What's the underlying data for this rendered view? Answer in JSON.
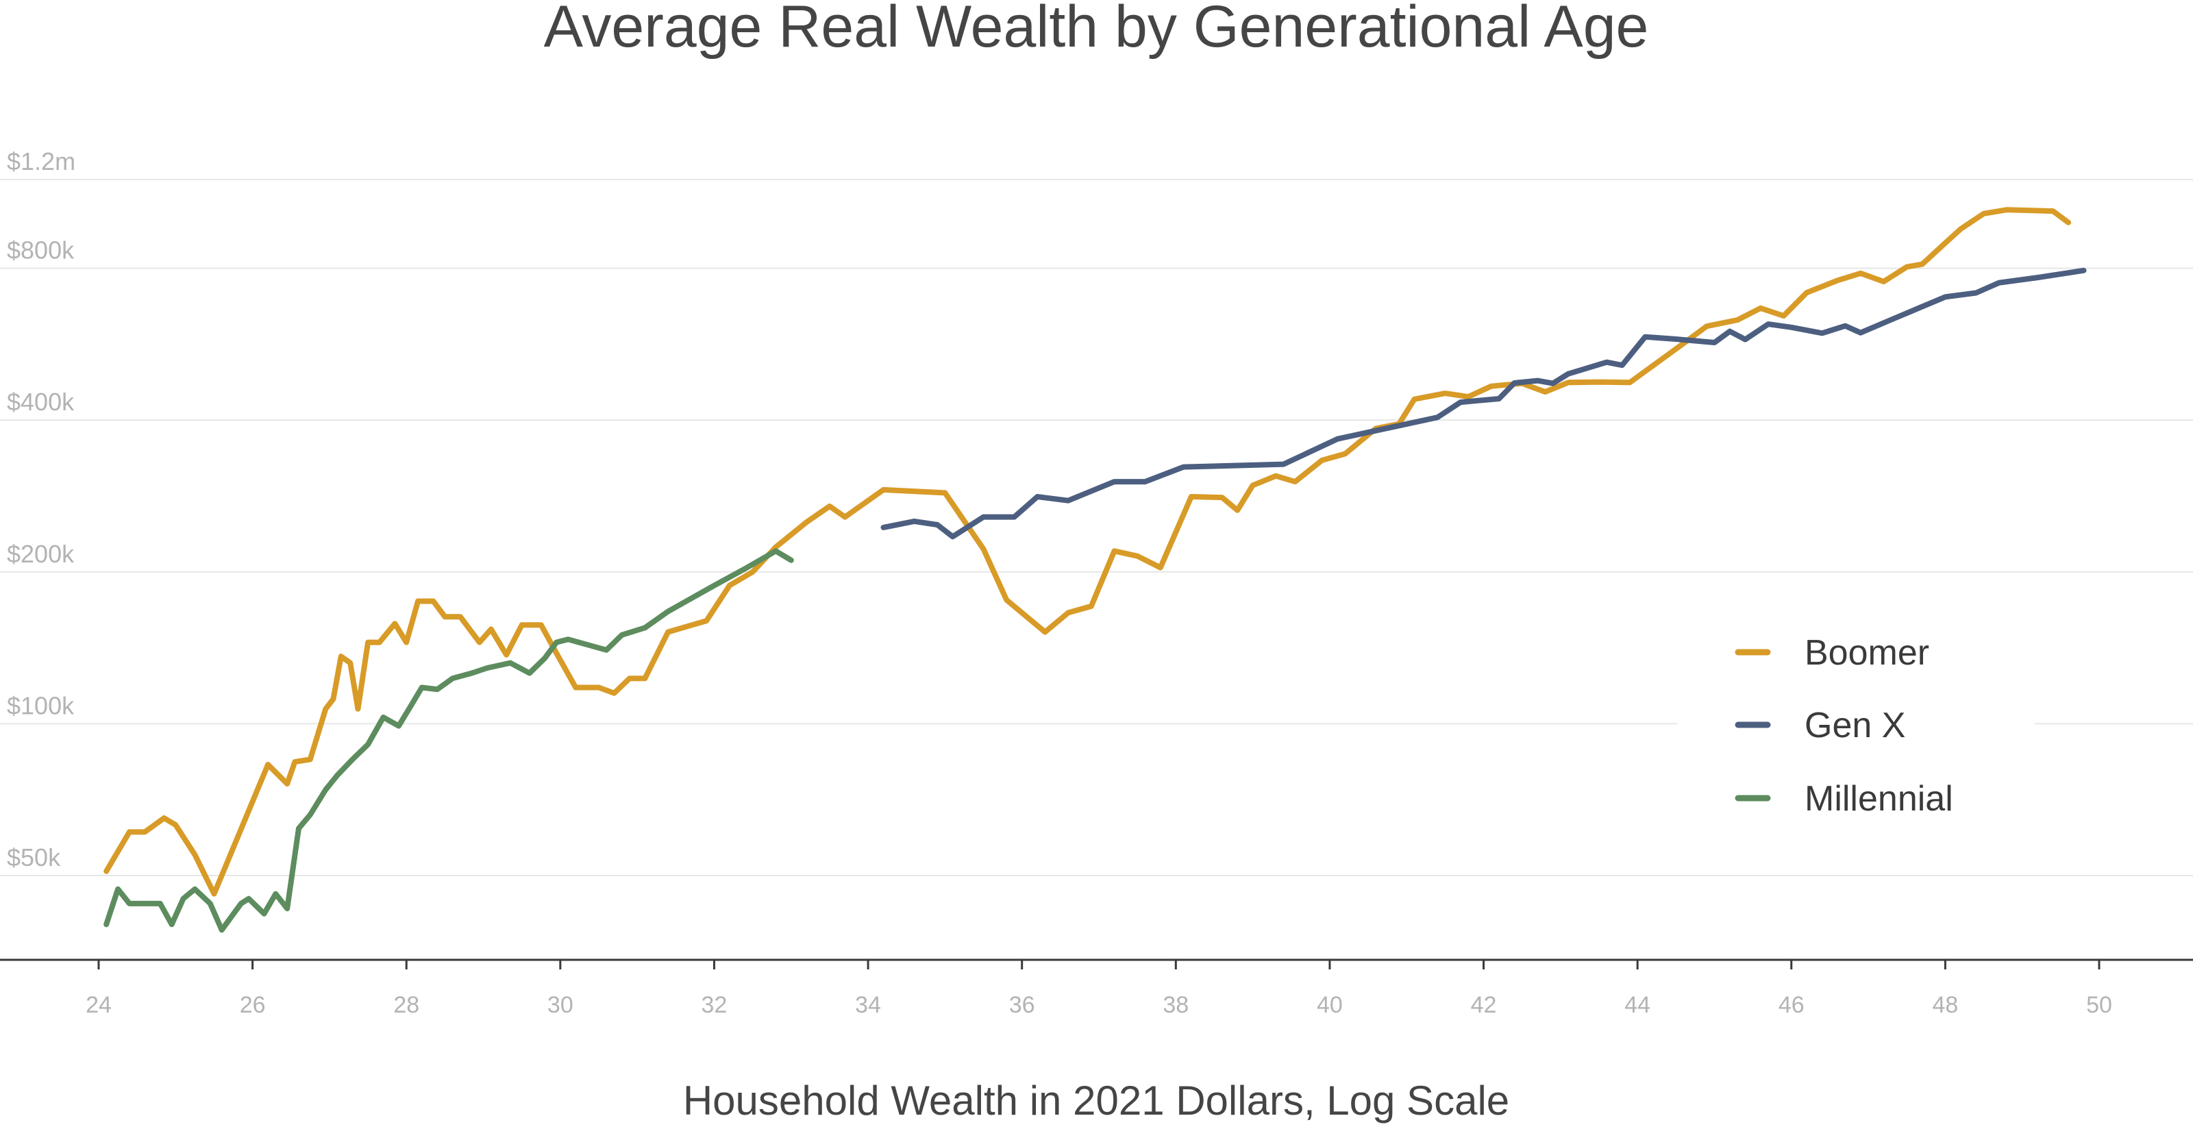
{
  "chart_data": {
    "type": "line",
    "title": "Average Real Wealth by Generational Age",
    "caption": "Household Wealth in 2021 Dollars, Log Scale",
    "xlabel": "",
    "ylabel": "",
    "xlim": [
      23.9,
      51.3
    ],
    "ylim": [
      30000,
      1400000
    ],
    "yscale": "log",
    "grid": true,
    "x_ticks": [
      24,
      26,
      28,
      30,
      32,
      34,
      36,
      38,
      40,
      42,
      44,
      46,
      48,
      50
    ],
    "x_tick_labels": [
      "24",
      "26",
      "28",
      "30",
      "32",
      "34",
      "36",
      "38",
      "40",
      "42",
      "44",
      "46",
      "48",
      "50"
    ],
    "y_ticks": [
      50000,
      100000,
      200000,
      400000,
      800000,
      1200000
    ],
    "y_tick_labels": [
      "$50k",
      "$100k",
      "$200k",
      "$400k",
      "$800k",
      "$1.2m"
    ],
    "legend_position": "right",
    "series": [
      {
        "name": "Boomer",
        "color": "#d89b27",
        "x": [
          24.1,
          24.4,
          24.6,
          24.85,
          25.0,
          25.25,
          25.5,
          26.2,
          26.45,
          26.55,
          26.75,
          26.95,
          27.05,
          27.15,
          27.27,
          27.37,
          27.5,
          27.65,
          27.85,
          28.0,
          28.15,
          28.35,
          28.5,
          28.7,
          28.95,
          29.1,
          29.3,
          29.5,
          29.75,
          29.95,
          30.2,
          30.5,
          30.7,
          30.9,
          31.1,
          31.4,
          31.9,
          32.2,
          32.5,
          32.8,
          33.2,
          33.5,
          33.7,
          34.2,
          35.0,
          35.5,
          35.8,
          36.3,
          36.6,
          36.9,
          37.2,
          37.5,
          37.8,
          38.2,
          38.6,
          38.8,
          39.0,
          39.3,
          39.55,
          39.9,
          40.2,
          40.6,
          40.9,
          41.1,
          41.5,
          41.8,
          42.1,
          42.5,
          42.8,
          43.1,
          43.5,
          43.9,
          44.3,
          44.6,
          44.9,
          45.3,
          45.6,
          45.9,
          46.2,
          46.6,
          46.9,
          47.2,
          47.5,
          47.7,
          48.0,
          48.2,
          48.5,
          48.8,
          49.1,
          49.4,
          49.6
        ],
        "values": [
          51000,
          61000,
          61000,
          65000,
          63000,
          55000,
          46000,
          83000,
          76000,
          84000,
          85000,
          107000,
          112000,
          136000,
          132000,
          107000,
          145000,
          145000,
          158000,
          145000,
          175000,
          175000,
          163000,
          163000,
          145000,
          154000,
          137000,
          157000,
          157000,
          138000,
          118000,
          118000,
          115000,
          123000,
          123000,
          152000,
          160000,
          188000,
          200000,
          224000,
          251000,
          270000,
          257000,
          291000,
          287000,
          222000,
          176000,
          152000,
          166000,
          171000,
          220000,
          215000,
          204000,
          282000,
          281000,
          265000,
          297000,
          310000,
          302000,
          333000,
          343000,
          385000,
          393000,
          440000,
          452000,
          445000,
          467000,
          473000,
          455000,
          475000,
          476000,
          475000,
          526000,
          568000,
          614000,
          632000,
          667000,
          644000,
          716000,
          757000,
          782000,
          753000,
          805000,
          815000,
          898000,
          957000,
          1027000,
          1045000,
          1042000,
          1039000,
          986000
        ]
      },
      {
        "name": "Gen X",
        "color": "#4d5f80",
        "x": [
          34.2,
          34.6,
          34.9,
          35.1,
          35.5,
          35.9,
          36.2,
          36.6,
          37.2,
          37.6,
          38.1,
          39.4,
          40.1,
          41.4,
          41.7,
          42.2,
          42.4,
          42.7,
          42.9,
          43.1,
          43.6,
          43.8,
          44.1,
          44.5,
          45.0,
          45.2,
          45.4,
          45.7,
          46.0,
          46.4,
          46.7,
          46.9,
          47.3,
          48.0,
          48.4,
          48.7,
          49.2,
          49.8
        ],
        "values": [
          245000,
          252000,
          248000,
          235000,
          257000,
          257000,
          282000,
          277000,
          302000,
          302000,
          323000,
          327000,
          367000,
          405000,
          434000,
          441000,
          474000,
          479000,
          473000,
          494000,
          521000,
          514000,
          585000,
          579000,
          570000,
          600000,
          578000,
          620000,
          611000,
          595000,
          615000,
          596000,
          633000,
          702000,
          715000,
          749000,
          767000,
          792000
        ]
      },
      {
        "name": "Millennial",
        "color": "#5d8c5e",
        "x": [
          24.1,
          24.25,
          24.4,
          24.6,
          24.8,
          24.95,
          25.1,
          25.25,
          25.45,
          25.6,
          25.85,
          25.95,
          26.15,
          26.3,
          26.45,
          26.6,
          26.75,
          26.95,
          27.1,
          27.3,
          27.5,
          27.7,
          27.9,
          28.05,
          28.2,
          28.4,
          28.6,
          28.85,
          29.05,
          29.35,
          29.6,
          29.8,
          29.95,
          30.1,
          30.6,
          30.8,
          31.1,
          31.4,
          32.0,
          32.4,
          32.8,
          33.0
        ],
        "values": [
          40000,
          47000,
          44000,
          44000,
          44000,
          40000,
          45000,
          47000,
          44000,
          39000,
          44000,
          45000,
          42000,
          46000,
          43000,
          62000,
          66000,
          74000,
          79000,
          85000,
          91000,
          103000,
          99000,
          108000,
          118000,
          117000,
          123000,
          126000,
          129000,
          132000,
          126000,
          135000,
          145000,
          147000,
          140000,
          150000,
          155000,
          167000,
          188000,
          203000,
          220000,
          211000
        ]
      }
    ]
  }
}
